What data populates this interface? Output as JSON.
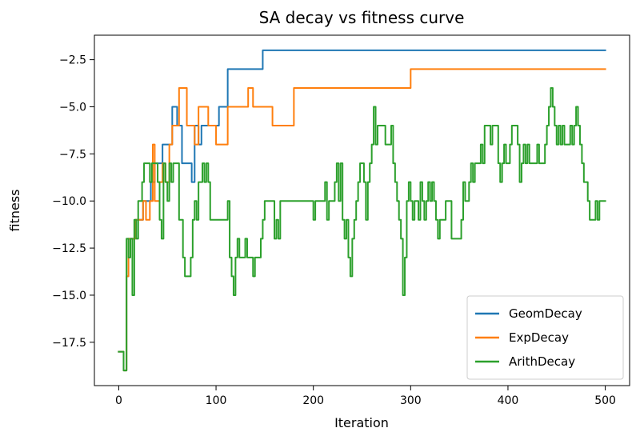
{
  "chart_data": {
    "type": "line",
    "title": "SA decay vs fitness curve",
    "xlabel": "Iteration",
    "ylabel": "fitness",
    "xlim": [
      -25,
      525
    ],
    "ylim": [
      -19.8,
      -1.2
    ],
    "xticks": [
      0,
      100,
      200,
      300,
      400,
      500
    ],
    "xtick_labels": [
      "0",
      "100",
      "200",
      "300",
      "400",
      "500"
    ],
    "yticks": [
      -2.5,
      -5.0,
      -7.5,
      -10.0,
      -12.5,
      -15.0,
      -17.5
    ],
    "ytick_labels": [
      "−2.5",
      "−5.0",
      "−7.5",
      "−10.0",
      "−12.5",
      "−15.0",
      "−17.5"
    ],
    "grid": false,
    "legend_position": "bottom-right",
    "series": [
      {
        "name": "GeomDecay",
        "color": "#1f77b4",
        "points": [
          [
            0,
            -18
          ],
          [
            3,
            -18
          ],
          [
            5,
            -19
          ],
          [
            8,
            -14
          ],
          [
            10,
            -12
          ],
          [
            15,
            -12
          ],
          [
            17,
            -11
          ],
          [
            22,
            -11
          ],
          [
            25,
            -10
          ],
          [
            30,
            -10
          ],
          [
            33,
            -9
          ],
          [
            37,
            -8
          ],
          [
            43,
            -8
          ],
          [
            45,
            -7
          ],
          [
            52,
            -7
          ],
          [
            55,
            -5
          ],
          [
            58,
            -5
          ],
          [
            60,
            -6
          ],
          [
            65,
            -8
          ],
          [
            70,
            -8
          ],
          [
            72,
            -8
          ],
          [
            75,
            -9
          ],
          [
            78,
            -6
          ],
          [
            80,
            -6
          ],
          [
            82,
            -7
          ],
          [
            85,
            -6
          ],
          [
            100,
            -6
          ],
          [
            103,
            -5
          ],
          [
            110,
            -5
          ],
          [
            112,
            -3
          ],
          [
            145,
            -3
          ],
          [
            148,
            -2
          ],
          [
            500,
            -2
          ]
        ]
      },
      {
        "name": "ExpDecay",
        "color": "#ff7f0e",
        "points": [
          [
            0,
            -18
          ],
          [
            3,
            -18
          ],
          [
            5,
            -19
          ],
          [
            8,
            -14
          ],
          [
            10,
            -12
          ],
          [
            15,
            -12
          ],
          [
            17,
            -11
          ],
          [
            22,
            -11
          ],
          [
            25,
            -10
          ],
          [
            28,
            -11
          ],
          [
            32,
            -10
          ],
          [
            35,
            -7
          ],
          [
            37,
            -10
          ],
          [
            40,
            -10
          ],
          [
            42,
            -9
          ],
          [
            45,
            -8
          ],
          [
            48,
            -9
          ],
          [
            52,
            -7
          ],
          [
            55,
            -6
          ],
          [
            60,
            -6
          ],
          [
            62,
            -4
          ],
          [
            67,
            -4
          ],
          [
            70,
            -6
          ],
          [
            75,
            -6
          ],
          [
            78,
            -7
          ],
          [
            82,
            -5
          ],
          [
            90,
            -5
          ],
          [
            92,
            -6
          ],
          [
            97,
            -6
          ],
          [
            100,
            -7
          ],
          [
            110,
            -7
          ],
          [
            112,
            -5
          ],
          [
            130,
            -5
          ],
          [
            133,
            -4
          ],
          [
            135,
            -4
          ],
          [
            138,
            -5
          ],
          [
            155,
            -5
          ],
          [
            158,
            -6
          ],
          [
            178,
            -6
          ],
          [
            180,
            -4
          ],
          [
            298,
            -4
          ],
          [
            300,
            -3
          ],
          [
            500,
            -3
          ]
        ]
      },
      {
        "name": "ArithDecay",
        "color": "#2ca02c",
        "points": [
          [
            0,
            -18
          ],
          [
            3,
            -18
          ],
          [
            5,
            -19
          ],
          [
            8,
            -12
          ],
          [
            10,
            -13
          ],
          [
            12,
            -12
          ],
          [
            14,
            -15
          ],
          [
            16,
            -11
          ],
          [
            18,
            -12
          ],
          [
            20,
            -10
          ],
          [
            22,
            -10
          ],
          [
            24,
            -9
          ],
          [
            26,
            -8
          ],
          [
            30,
            -8
          ],
          [
            32,
            -9
          ],
          [
            34,
            -8
          ],
          [
            38,
            -8
          ],
          [
            40,
            -9
          ],
          [
            42,
            -11
          ],
          [
            44,
            -12
          ],
          [
            46,
            -8
          ],
          [
            48,
            -9
          ],
          [
            50,
            -10
          ],
          [
            52,
            -8
          ],
          [
            54,
            -9
          ],
          [
            56,
            -8
          ],
          [
            60,
            -8
          ],
          [
            62,
            -11
          ],
          [
            64,
            -11
          ],
          [
            66,
            -13
          ],
          [
            68,
            -14
          ],
          [
            72,
            -14
          ],
          [
            74,
            -13
          ],
          [
            76,
            -11
          ],
          [
            78,
            -10
          ],
          [
            80,
            -11
          ],
          [
            82,
            -9
          ],
          [
            84,
            -9
          ],
          [
            86,
            -8
          ],
          [
            88,
            -9
          ],
          [
            90,
            -8
          ],
          [
            92,
            -9
          ],
          [
            94,
            -11
          ],
          [
            100,
            -11
          ],
          [
            110,
            -11
          ],
          [
            112,
            -10
          ],
          [
            114,
            -13
          ],
          [
            116,
            -14
          ],
          [
            118,
            -15
          ],
          [
            120,
            -13
          ],
          [
            122,
            -12
          ],
          [
            124,
            -13
          ],
          [
            128,
            -13
          ],
          [
            130,
            -12
          ],
          [
            132,
            -13
          ],
          [
            136,
            -13
          ],
          [
            138,
            -14
          ],
          [
            140,
            -13
          ],
          [
            144,
            -13
          ],
          [
            146,
            -12
          ],
          [
            148,
            -11
          ],
          [
            150,
            -10
          ],
          [
            158,
            -10
          ],
          [
            160,
            -12
          ],
          [
            162,
            -11
          ],
          [
            164,
            -12
          ],
          [
            166,
            -10
          ],
          [
            180,
            -10
          ],
          [
            198,
            -10
          ],
          [
            200,
            -11
          ],
          [
            202,
            -10
          ],
          [
            210,
            -10
          ],
          [
            212,
            -9
          ],
          [
            214,
            -11
          ],
          [
            216,
            -10
          ],
          [
            220,
            -10
          ],
          [
            222,
            -9
          ],
          [
            224,
            -8
          ],
          [
            226,
            -10
          ],
          [
            228,
            -8
          ],
          [
            230,
            -11
          ],
          [
            232,
            -12
          ],
          [
            234,
            -11
          ],
          [
            236,
            -13
          ],
          [
            238,
            -14
          ],
          [
            240,
            -12
          ],
          [
            242,
            -11
          ],
          [
            244,
            -10
          ],
          [
            246,
            -9
          ],
          [
            248,
            -8
          ],
          [
            250,
            -8
          ],
          [
            252,
            -9
          ],
          [
            254,
            -11
          ],
          [
            256,
            -9
          ],
          [
            258,
            -8
          ],
          [
            260,
            -7
          ],
          [
            262,
            -5
          ],
          [
            264,
            -7
          ],
          [
            266,
            -6
          ],
          [
            268,
            -6
          ],
          [
            272,
            -6
          ],
          [
            274,
            -7
          ],
          [
            278,
            -7
          ],
          [
            280,
            -6
          ],
          [
            282,
            -8
          ],
          [
            284,
            -9
          ],
          [
            286,
            -10
          ],
          [
            288,
            -11
          ],
          [
            290,
            -12
          ],
          [
            292,
            -15
          ],
          [
            294,
            -13
          ],
          [
            296,
            -10
          ],
          [
            298,
            -9
          ],
          [
            300,
            -10
          ],
          [
            302,
            -11
          ],
          [
            304,
            -10
          ],
          [
            306,
            -10
          ],
          [
            308,
            -11
          ],
          [
            310,
            -9
          ],
          [
            312,
            -10
          ],
          [
            314,
            -11
          ],
          [
            316,
            -10
          ],
          [
            318,
            -9
          ],
          [
            320,
            -10
          ],
          [
            322,
            -9
          ],
          [
            324,
            -10
          ],
          [
            326,
            -11
          ],
          [
            328,
            -12
          ],
          [
            330,
            -11
          ],
          [
            334,
            -11
          ],
          [
            336,
            -10
          ],
          [
            340,
            -10
          ],
          [
            342,
            -12
          ],
          [
            350,
            -12
          ],
          [
            352,
            -11
          ],
          [
            354,
            -9
          ],
          [
            356,
            -10
          ],
          [
            358,
            -10
          ],
          [
            360,
            -9
          ],
          [
            362,
            -8
          ],
          [
            364,
            -9
          ],
          [
            366,
            -8
          ],
          [
            370,
            -8
          ],
          [
            372,
            -7
          ],
          [
            374,
            -8
          ],
          [
            376,
            -6
          ],
          [
            380,
            -6
          ],
          [
            382,
            -7
          ],
          [
            384,
            -6
          ],
          [
            388,
            -6
          ],
          [
            390,
            -8
          ],
          [
            392,
            -9
          ],
          [
            394,
            -8
          ],
          [
            396,
            -7
          ],
          [
            398,
            -8
          ],
          [
            400,
            -8
          ],
          [
            402,
            -7
          ],
          [
            404,
            -6
          ],
          [
            408,
            -6
          ],
          [
            410,
            -7
          ],
          [
            412,
            -9
          ],
          [
            414,
            -8
          ],
          [
            416,
            -7
          ],
          [
            418,
            -8
          ],
          [
            420,
            -7
          ],
          [
            422,
            -8
          ],
          [
            428,
            -8
          ],
          [
            430,
            -7
          ],
          [
            432,
            -8
          ],
          [
            436,
            -8
          ],
          [
            438,
            -7
          ],
          [
            440,
            -6
          ],
          [
            442,
            -5
          ],
          [
            444,
            -4
          ],
          [
            446,
            -5
          ],
          [
            448,
            -6
          ],
          [
            450,
            -7
          ],
          [
            452,
            -6
          ],
          [
            454,
            -7
          ],
          [
            456,
            -6
          ],
          [
            458,
            -7
          ],
          [
            462,
            -7
          ],
          [
            464,
            -6
          ],
          [
            466,
            -7
          ],
          [
            468,
            -6
          ],
          [
            470,
            -5
          ],
          [
            472,
            -6
          ],
          [
            474,
            -7
          ],
          [
            476,
            -8
          ],
          [
            478,
            -9
          ],
          [
            480,
            -9
          ],
          [
            482,
            -10
          ],
          [
            484,
            -11
          ],
          [
            488,
            -11
          ],
          [
            490,
            -10
          ],
          [
            492,
            -11
          ],
          [
            494,
            -10
          ],
          [
            500,
            -10
          ]
        ]
      }
    ]
  }
}
